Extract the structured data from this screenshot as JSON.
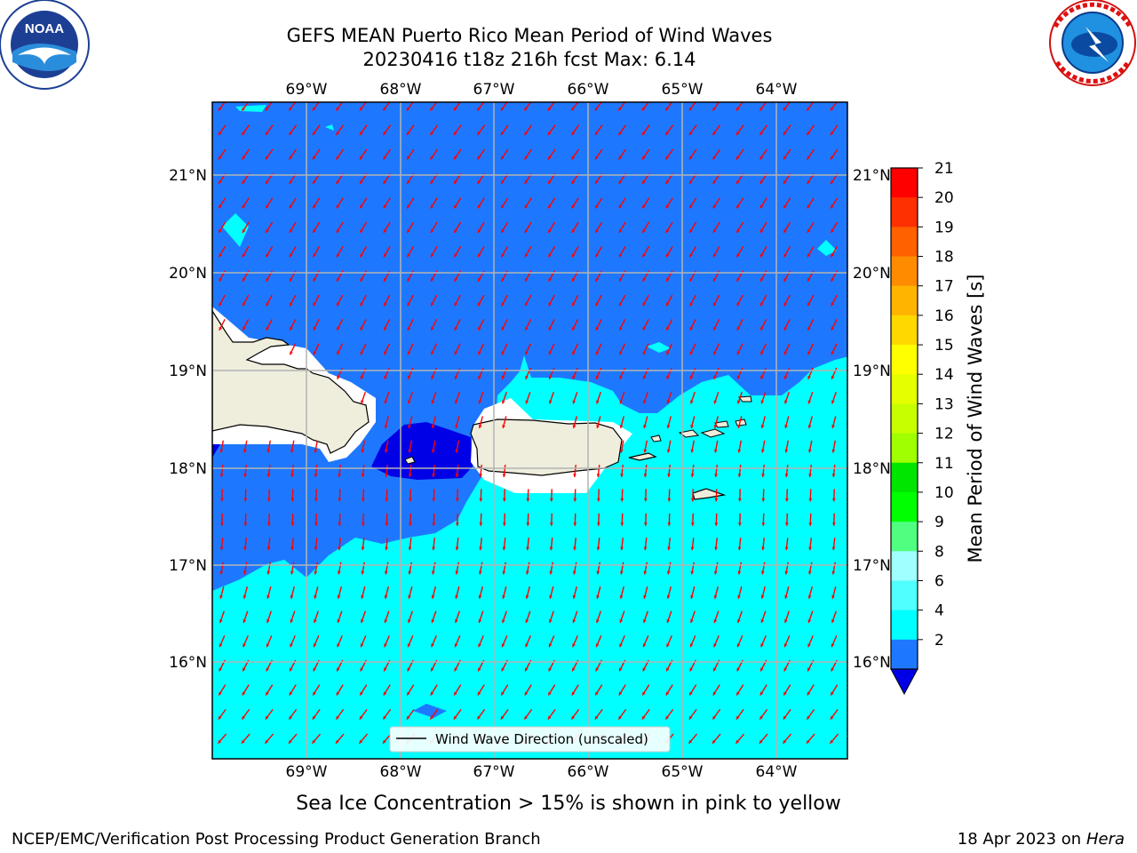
{
  "header": {
    "title_line1": "GEFS MEAN Puerto Rico Mean Period of Wind Waves",
    "title_line2": "20230416 t18z 216h fcst   Max: 6.14"
  },
  "logos": {
    "left": {
      "name": "noaa-logo",
      "text": "NOAA",
      "ring_text": "NATIONAL OCEANIC AND ATMOSPHERIC ADMINISTRATION · U.S. DEPARTMENT OF COMMERCE"
    },
    "right": {
      "name": "nws-logo",
      "ring_text": "NATIONAL WEATHER SERVICE"
    }
  },
  "map": {
    "lon_ticks": [
      "69°W",
      "68°W",
      "67°W",
      "66°W",
      "65°W",
      "64°W"
    ],
    "lat_ticks": [
      "21°N",
      "20°N",
      "19°N",
      "18°N",
      "17°N",
      "16°N"
    ],
    "legend": "Wind Wave Direction (unscaled)",
    "colors": {
      "level_2_4": "#1e78ff",
      "level_4_6": "#00ffff",
      "below_2": "#0000e6",
      "land": "#efeddc",
      "arrow": "#ff0000",
      "grid": "#b4b4b4"
    }
  },
  "colorbar": {
    "label": "Mean Period of Wind Waves [s]",
    "ticks": [
      "21",
      "20",
      "19",
      "18",
      "17",
      "16",
      "15",
      "14",
      "13",
      "12",
      "11",
      "10",
      "9",
      "8",
      "6",
      "4",
      "2"
    ],
    "colors": [
      "#ff0000",
      "#ff3000",
      "#ff6000",
      "#ff8c00",
      "#ffb400",
      "#ffd800",
      "#ffff00",
      "#e6ff00",
      "#c8ff00",
      "#a0ff00",
      "#00e600",
      "#00ff00",
      "#50ff80",
      "#a0ffff",
      "#50ffff",
      "#00ffff",
      "#1e78ff"
    ],
    "under_color": "#0000e6"
  },
  "footer": {
    "note": "Sea Ice Concentration > 15% is shown in pink to yellow",
    "org": "NCEP/EMC/Verification Post Processing Product Generation Branch",
    "date": "18 Apr 2023 on",
    "machine": "Hera"
  }
}
